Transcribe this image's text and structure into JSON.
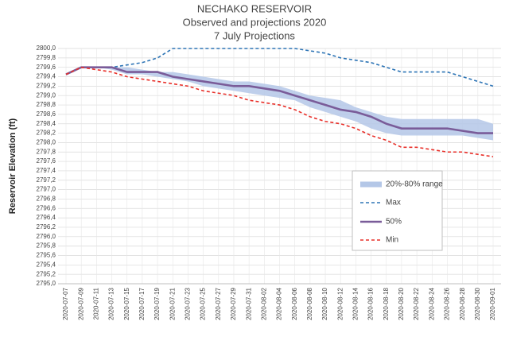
{
  "chart_data": {
    "type": "line",
    "title": "NECHAKO RESERVOIR",
    "subtitle": "Observed and projections 2020",
    "subtitle2": "7 July Projections",
    "y_label": "Reservoir Elevation (ft)",
    "grid": true,
    "categories": [
      "2020-07-07",
      "2020-07-09",
      "2020-07-11",
      "2020-07-13",
      "2020-07-15",
      "2020-07-17",
      "2020-07-19",
      "2020-07-21",
      "2020-07-23",
      "2020-07-25",
      "2020-07-27",
      "2020-07-29",
      "2020-07-31",
      "2020-08-02",
      "2020-08-04",
      "2020-08-06",
      "2020-08-08",
      "2020-08-10",
      "2020-08-12",
      "2020-08-14",
      "2020-08-16",
      "2020-08-18",
      "2020-08-20",
      "2020-08-22",
      "2020-08-24",
      "2020-08-26",
      "2020-08-28",
      "2020-08-30",
      "2020-09-01"
    ],
    "ylim": [
      2795.0,
      2800.0
    ],
    "yticks": [
      {
        "value": 2795.0,
        "label": "2795,0"
      },
      {
        "value": 2795.2,
        "label": "2795,2"
      },
      {
        "value": 2795.4,
        "label": "2795,4"
      },
      {
        "value": 2795.6,
        "label": "2795,6"
      },
      {
        "value": 2795.8,
        "label": "2795,8"
      },
      {
        "value": 2796.0,
        "label": "2796,0"
      },
      {
        "value": 2796.2,
        "label": "2796,2"
      },
      {
        "value": 2796.4,
        "label": "2796,4"
      },
      {
        "value": 2796.6,
        "label": "2796,6"
      },
      {
        "value": 2796.8,
        "label": "2796,8"
      },
      {
        "value": 2797.0,
        "label": "2797,0"
      },
      {
        "value": 2797.2,
        "label": "2797,2"
      },
      {
        "value": 2797.4,
        "label": "2797,4"
      },
      {
        "value": 2797.6,
        "label": "2797,6"
      },
      {
        "value": 2797.8,
        "label": "2797,8"
      },
      {
        "value": 2798.0,
        "label": "2798,0"
      },
      {
        "value": 2798.2,
        "label": "2798,2"
      },
      {
        "value": 2798.4,
        "label": "2798,4"
      },
      {
        "value": 2798.6,
        "label": "2798,6"
      },
      {
        "value": 2798.8,
        "label": "2798,8"
      },
      {
        "value": 2799.0,
        "label": "2799,0"
      },
      {
        "value": 2799.2,
        "label": "2799,2"
      },
      {
        "value": 2799.4,
        "label": "2799,4"
      },
      {
        "value": 2799.6,
        "label": "2799,6"
      },
      {
        "value": 2799.8,
        "label": "2799,8"
      },
      {
        "value": 2800.0,
        "label": "2800,0"
      }
    ],
    "band": {
      "name": "20%-80% range",
      "color": "#b4c7e7",
      "high": [
        2799.45,
        2799.6,
        2799.6,
        2799.6,
        2799.6,
        2799.55,
        2799.5,
        2799.5,
        2799.45,
        2799.4,
        2799.35,
        2799.3,
        2799.3,
        2799.25,
        2799.2,
        2799.1,
        2799.0,
        2798.95,
        2798.9,
        2798.75,
        2798.65,
        2798.55,
        2798.5,
        2798.5,
        2798.5,
        2798.5,
        2798.5,
        2798.5,
        2798.4
      ],
      "low": [
        2799.45,
        2799.6,
        2799.6,
        2799.55,
        2799.45,
        2799.45,
        2799.4,
        2799.35,
        2799.3,
        2799.2,
        2799.15,
        2799.1,
        2799.05,
        2799.0,
        2798.95,
        2798.9,
        2798.75,
        2798.65,
        2798.55,
        2798.45,
        2798.3,
        2798.2,
        2798.15,
        2798.15,
        2798.15,
        2798.15,
        2798.15,
        2798.1,
        2798.05
      ]
    },
    "series": [
      {
        "name": "Max",
        "color": "#2e75b6",
        "dash": true,
        "values": [
          2799.45,
          2799.6,
          2799.6,
          2799.6,
          2799.65,
          2799.7,
          2799.8,
          2800.0,
          2800.0,
          2800.0,
          2800.0,
          2800.0,
          2800.0,
          2800.0,
          2800.0,
          2800.0,
          2799.95,
          2799.9,
          2799.8,
          2799.75,
          2799.7,
          2799.6,
          2799.5,
          2799.5,
          2799.5,
          2799.5,
          2799.4,
          2799.3,
          2799.2
        ]
      },
      {
        "name": "50%",
        "color": "#7a5c99",
        "dash": false,
        "values": [
          2799.45,
          2799.6,
          2799.6,
          2799.6,
          2799.5,
          2799.5,
          2799.5,
          2799.4,
          2799.35,
          2799.3,
          2799.25,
          2799.2,
          2799.2,
          2799.15,
          2799.1,
          2799.0,
          2798.9,
          2798.8,
          2798.7,
          2798.65,
          2798.55,
          2798.4,
          2798.3,
          2798.3,
          2798.3,
          2798.3,
          2798.25,
          2798.2,
          2798.2
        ]
      },
      {
        "name": "Min",
        "color": "#e8302a",
        "dash": true,
        "values": [
          2799.45,
          2799.6,
          2799.55,
          2799.5,
          2799.4,
          2799.35,
          2799.3,
          2799.25,
          2799.2,
          2799.1,
          2799.05,
          2799.0,
          2798.9,
          2798.85,
          2798.8,
          2798.7,
          2798.55,
          2798.45,
          2798.4,
          2798.3,
          2798.15,
          2798.05,
          2797.9,
          2797.9,
          2797.85,
          2797.8,
          2797.8,
          2797.75,
          2797.7
        ]
      }
    ]
  }
}
